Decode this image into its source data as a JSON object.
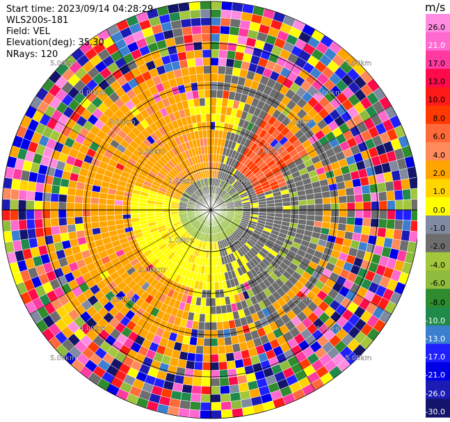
{
  "info": {
    "start_time": "Start time: 2023/09/14 04:28:29",
    "station": "WLS200s-181",
    "field": "Field: VEL",
    "elevation": "Elevation(deg): 35.30",
    "nrays": "NRays: 120"
  },
  "chart_data": {
    "type": "polar-ppi",
    "field": "VEL",
    "units": "m/s",
    "nrays": 120,
    "range_rings_km": [
      1.0,
      2.0,
      3.0,
      4.0,
      5.0
    ],
    "ring_labels": [
      "1.00km",
      "2.00km",
      "3.00km",
      "4.00km",
      "5.00km"
    ],
    "max_range_km": 5.0,
    "colorbar": {
      "title": "m/s",
      "colors": [
        "#14146b",
        "#1c1cb4",
        "#0000e6",
        "#2020ff",
        "#3a7fd0",
        "#208a4a",
        "#2e8b2e",
        "#8fbc3c",
        "#a4c63c",
        "#6d6d6d",
        "#808aa0",
        "#ffff00",
        "#ffd400",
        "#ffa500",
        "#ff8a5a",
        "#ff6a3a",
        "#ff3a00",
        "#ff1a1a",
        "#ff0a4a",
        "#ff3aa0",
        "#ff6ad0",
        "#ff8ce0"
      ],
      "ticks": [
        "26.0",
        "21.0",
        "17.0",
        "13.0",
        "10.0",
        "8.0",
        "6.0",
        "4.0",
        "2.0",
        "1.0",
        "0.0",
        "-1.0",
        "-2.0",
        "-4.0",
        "-6.0",
        "-8.0",
        "-10.0",
        "-13.0",
        "-17.0",
        "-21.0",
        "-26.0",
        "-30.0"
      ]
    }
  }
}
